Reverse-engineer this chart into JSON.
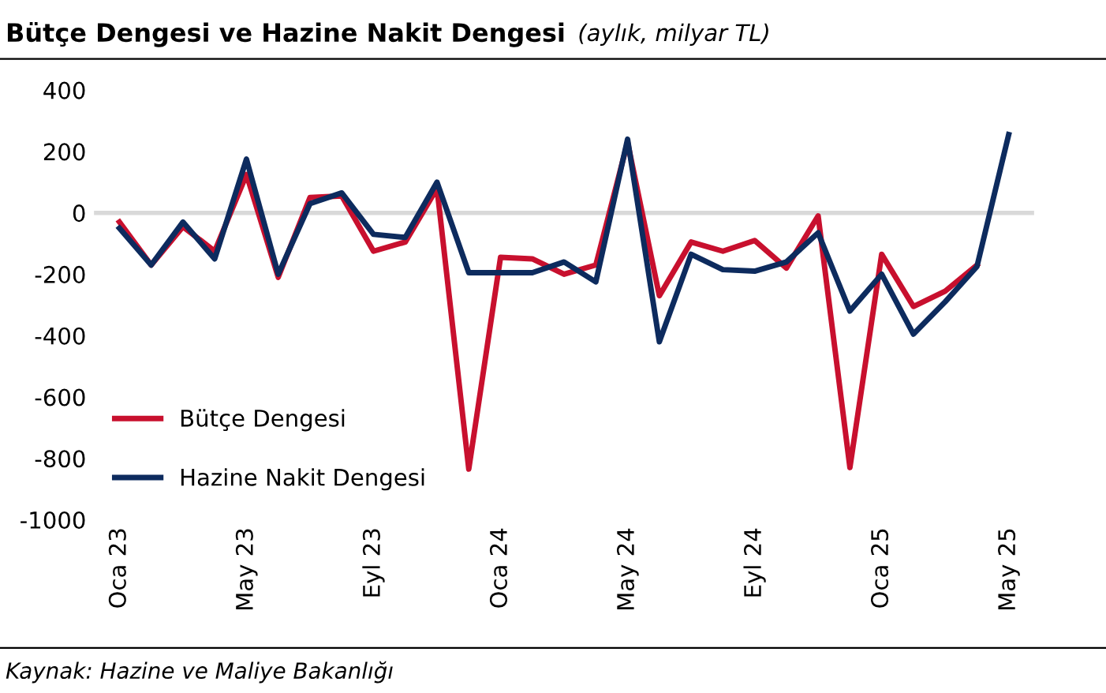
{
  "chart_data": {
    "type": "line",
    "title": "Bütçe Dengesi ve Hazine Nakit Dengesi",
    "subtitle": "(aylık, milyar TL)",
    "categories": [
      "Oca 23",
      null,
      null,
      null,
      "May 23",
      null,
      null,
      null,
      "Eyl 23",
      null,
      null,
      null,
      "Oca 24",
      null,
      null,
      null,
      "May 24",
      null,
      null,
      null,
      "Eyl 24",
      null,
      null,
      null,
      "Oca 25",
      null,
      null,
      null,
      "May 25"
    ],
    "series": [
      {
        "name": "Bütçe Dengesi",
        "color": "#c8102e",
        "values": [
          -30,
          -170,
          -45,
          -125,
          125,
          -210,
          50,
          55,
          -125,
          -95,
          80,
          -835,
          -145,
          -150,
          -200,
          -170,
          230,
          -270,
          -95,
          -125,
          -90,
          -180,
          -10,
          -830,
          -135,
          -305,
          -255,
          -170,
          null
        ]
      },
      {
        "name": "Hazine Nakit Dengesi",
        "color": "#0d2b5e",
        "values": [
          -50,
          -170,
          -30,
          -150,
          175,
          -200,
          30,
          65,
          -70,
          -80,
          100,
          -195,
          -195,
          -195,
          -160,
          -225,
          240,
          -420,
          -135,
          -185,
          -190,
          -160,
          -65,
          -320,
          -200,
          -395,
          -290,
          -175,
          255
        ]
      }
    ],
    "ylim": [
      -1000,
      400
    ],
    "yticks": [
      -1000,
      -800,
      -600,
      -400,
      -200,
      0,
      200,
      400
    ],
    "ref_lines": [
      {
        "axis": "y",
        "value": 0,
        "color": "#d9d9d9"
      }
    ],
    "grid": false,
    "legend": "bottom left",
    "marker": "none",
    "line_style": "solid",
    "annotations": [
      "Kaynak: Hazine ve Maliye Bakanlığı"
    ]
  }
}
